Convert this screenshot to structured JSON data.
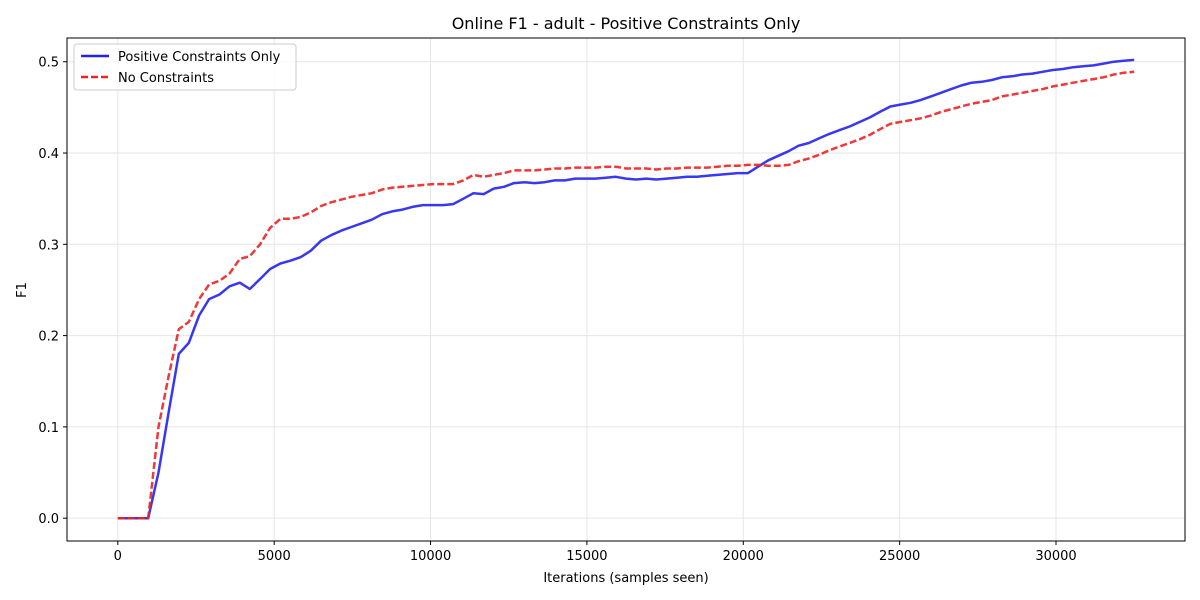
{
  "chart_data": {
    "type": "line",
    "title": "Online F1 - adult - Positive Constraints Only",
    "xlabel": "Iterations (samples seen)",
    "ylabel": "F1",
    "xlim": [
      -1625,
      34125
    ],
    "ylim": [
      -0.025,
      0.526
    ],
    "xticks": [
      0,
      5000,
      10000,
      15000,
      20000,
      25000,
      30000
    ],
    "xtick_labels": [
      "0",
      "5000",
      "10000",
      "15000",
      "20000",
      "25000",
      "30000"
    ],
    "yticks": [
      0.0,
      0.1,
      0.2,
      0.3,
      0.4,
      0.5
    ],
    "ytick_labels": [
      "0.0",
      "0.1",
      "0.2",
      "0.3",
      "0.4",
      "0.5"
    ],
    "grid": true,
    "legend_position": "top-left",
    "series": [
      {
        "name": "Positive Constraints Only",
        "color": "#2222ee",
        "style": "solid",
        "x": [
          0,
          320,
          650,
          970,
          1300,
          1620,
          1950,
          2270,
          2600,
          2920,
          3250,
          3570,
          3900,
          4220,
          4550,
          4870,
          5200,
          5520,
          5850,
          6170,
          6500,
          6820,
          7150,
          7470,
          7800,
          8120,
          8450,
          8770,
          9100,
          9420,
          9750,
          10070,
          10400,
          10720,
          11050,
          11370,
          11700,
          12020,
          12350,
          12670,
          13000,
          13320,
          13650,
          13970,
          14300,
          14620,
          14950,
          15270,
          15600,
          15920,
          16250,
          16570,
          16900,
          17220,
          17550,
          17870,
          18200,
          18520,
          18850,
          19170,
          19500,
          19820,
          20150,
          20470,
          20800,
          21120,
          21450,
          21770,
          22100,
          22420,
          22750,
          23070,
          23400,
          23720,
          24050,
          24370,
          24700,
          25020,
          25350,
          25670,
          26000,
          26320,
          26650,
          26970,
          27300,
          27620,
          27950,
          28270,
          28600,
          28920,
          29250,
          29570,
          29900,
          30220,
          30550,
          30870,
          31200,
          31520,
          31850,
          32170,
          32500
        ],
        "y": [
          0.0,
          0.0,
          0.0,
          0.0,
          0.05,
          0.115,
          0.18,
          0.192,
          0.222,
          0.24,
          0.245,
          0.254,
          0.258,
          0.251,
          0.262,
          0.273,
          0.279,
          0.282,
          0.286,
          0.293,
          0.304,
          0.31,
          0.315,
          0.319,
          0.323,
          0.327,
          0.333,
          0.336,
          0.338,
          0.341,
          0.343,
          0.343,
          0.343,
          0.344,
          0.35,
          0.356,
          0.355,
          0.361,
          0.363,
          0.367,
          0.368,
          0.367,
          0.368,
          0.37,
          0.37,
          0.372,
          0.372,
          0.372,
          0.373,
          0.374,
          0.372,
          0.371,
          0.372,
          0.371,
          0.372,
          0.373,
          0.374,
          0.374,
          0.375,
          0.376,
          0.377,
          0.378,
          0.378,
          0.385,
          0.392,
          0.397,
          0.402,
          0.408,
          0.411,
          0.416,
          0.421,
          0.425,
          0.429,
          0.434,
          0.439,
          0.445,
          0.451,
          0.453,
          0.455,
          0.458,
          0.462,
          0.466,
          0.47,
          0.474,
          0.477,
          0.478,
          0.48,
          0.483,
          0.484,
          0.486,
          0.487,
          0.489,
          0.491,
          0.492,
          0.494,
          0.495,
          0.496,
          0.498,
          0.5,
          0.501,
          0.502
        ]
      },
      {
        "name": "No Constraints",
        "color": "#ee2222",
        "style": "dashed",
        "x": [
          0,
          320,
          650,
          970,
          1300,
          1620,
          1950,
          2270,
          2600,
          2920,
          3250,
          3570,
          3900,
          4220,
          4550,
          4870,
          5200,
          5520,
          5850,
          6170,
          6500,
          6820,
          7150,
          7470,
          7800,
          8120,
          8450,
          8770,
          9100,
          9420,
          9750,
          10070,
          10400,
          10720,
          11050,
          11370,
          11700,
          12020,
          12350,
          12670,
          13000,
          13320,
          13650,
          13970,
          14300,
          14620,
          14950,
          15270,
          15600,
          15920,
          16250,
          16570,
          16900,
          17220,
          17550,
          17870,
          18200,
          18520,
          18850,
          19170,
          19500,
          19820,
          20150,
          20470,
          20800,
          21120,
          21450,
          21770,
          22100,
          22420,
          22750,
          23070,
          23400,
          23720,
          24050,
          24370,
          24700,
          25020,
          25350,
          25670,
          26000,
          26320,
          26650,
          26970,
          27300,
          27620,
          27950,
          28270,
          28600,
          28920,
          29250,
          29570,
          29900,
          30220,
          30550,
          30870,
          31200,
          31520,
          31850,
          32170,
          32500
        ],
        "y": [
          0.0,
          0.0,
          0.0,
          0.0,
          0.1,
          0.155,
          0.207,
          0.215,
          0.24,
          0.256,
          0.26,
          0.268,
          0.284,
          0.287,
          0.3,
          0.318,
          0.328,
          0.328,
          0.33,
          0.335,
          0.342,
          0.346,
          0.349,
          0.352,
          0.354,
          0.356,
          0.36,
          0.362,
          0.363,
          0.364,
          0.365,
          0.366,
          0.366,
          0.366,
          0.37,
          0.376,
          0.374,
          0.376,
          0.378,
          0.381,
          0.381,
          0.381,
          0.382,
          0.383,
          0.383,
          0.384,
          0.384,
          0.384,
          0.385,
          0.385,
          0.383,
          0.383,
          0.383,
          0.382,
          0.383,
          0.383,
          0.384,
          0.384,
          0.384,
          0.385,
          0.386,
          0.386,
          0.387,
          0.387,
          0.386,
          0.386,
          0.387,
          0.391,
          0.394,
          0.398,
          0.403,
          0.407,
          0.411,
          0.415,
          0.42,
          0.426,
          0.432,
          0.434,
          0.436,
          0.438,
          0.441,
          0.445,
          0.448,
          0.451,
          0.454,
          0.456,
          0.458,
          0.462,
          0.464,
          0.466,
          0.468,
          0.47,
          0.473,
          0.475,
          0.477,
          0.479,
          0.481,
          0.483,
          0.486,
          0.488,
          0.489
        ]
      }
    ]
  }
}
